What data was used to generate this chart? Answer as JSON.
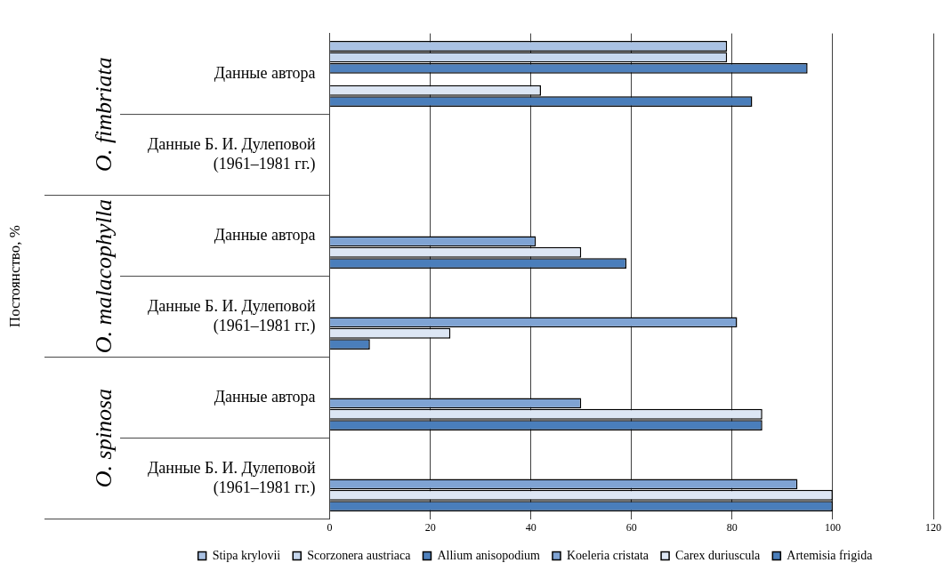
{
  "chart_data": {
    "type": "bar",
    "orientation": "horizontal",
    "categories": [
      "Данные автора",
      "Данные Б. И. Дулеповой\n(1961–1981 гг.)",
      "Данные автора",
      "Данные Б. И. Дулеповой\n(1961–1981 гг.)",
      "Данные автора",
      "Данные Б. И. Дулеповой\n(1961–1981 гг.)"
    ],
    "annotations": [
      "Постоянство, %",
      "O. fimbriata",
      "O. malacophylla",
      "O. spinosa"
    ],
    "series": [
      {
        "name": "Stipa krylovii",
        "color": "#a9c1e3",
        "values": [
          79,
          null,
          null,
          null,
          null,
          null
        ]
      },
      {
        "name": "Scorzonera austriaca",
        "color": "#c6d7ee",
        "values": [
          79,
          null,
          null,
          null,
          null,
          null
        ]
      },
      {
        "name": "Allium anisopodium",
        "color": "#4f81bd",
        "values": [
          95,
          null,
          null,
          null,
          null,
          null
        ]
      },
      {
        "name": "Koeleria cristata",
        "color": "#7fa3d3",
        "values": [
          null,
          null,
          41,
          81,
          50,
          93
        ]
      },
      {
        "name": "Carex duriuscula",
        "color": "#dce6f4",
        "values": [
          42,
          null,
          50,
          24,
          86,
          100
        ]
      },
      {
        "name": "Artemisia frigida",
        "color": "#4a7ebb",
        "values": [
          84,
          null,
          59,
          8,
          86,
          100
        ]
      }
    ],
    "xlim": [
      0,
      120
    ],
    "xticks": [
      0,
      20,
      40,
      60,
      80,
      100,
      120
    ],
    "grid": "x",
    "legend": "bottom"
  }
}
